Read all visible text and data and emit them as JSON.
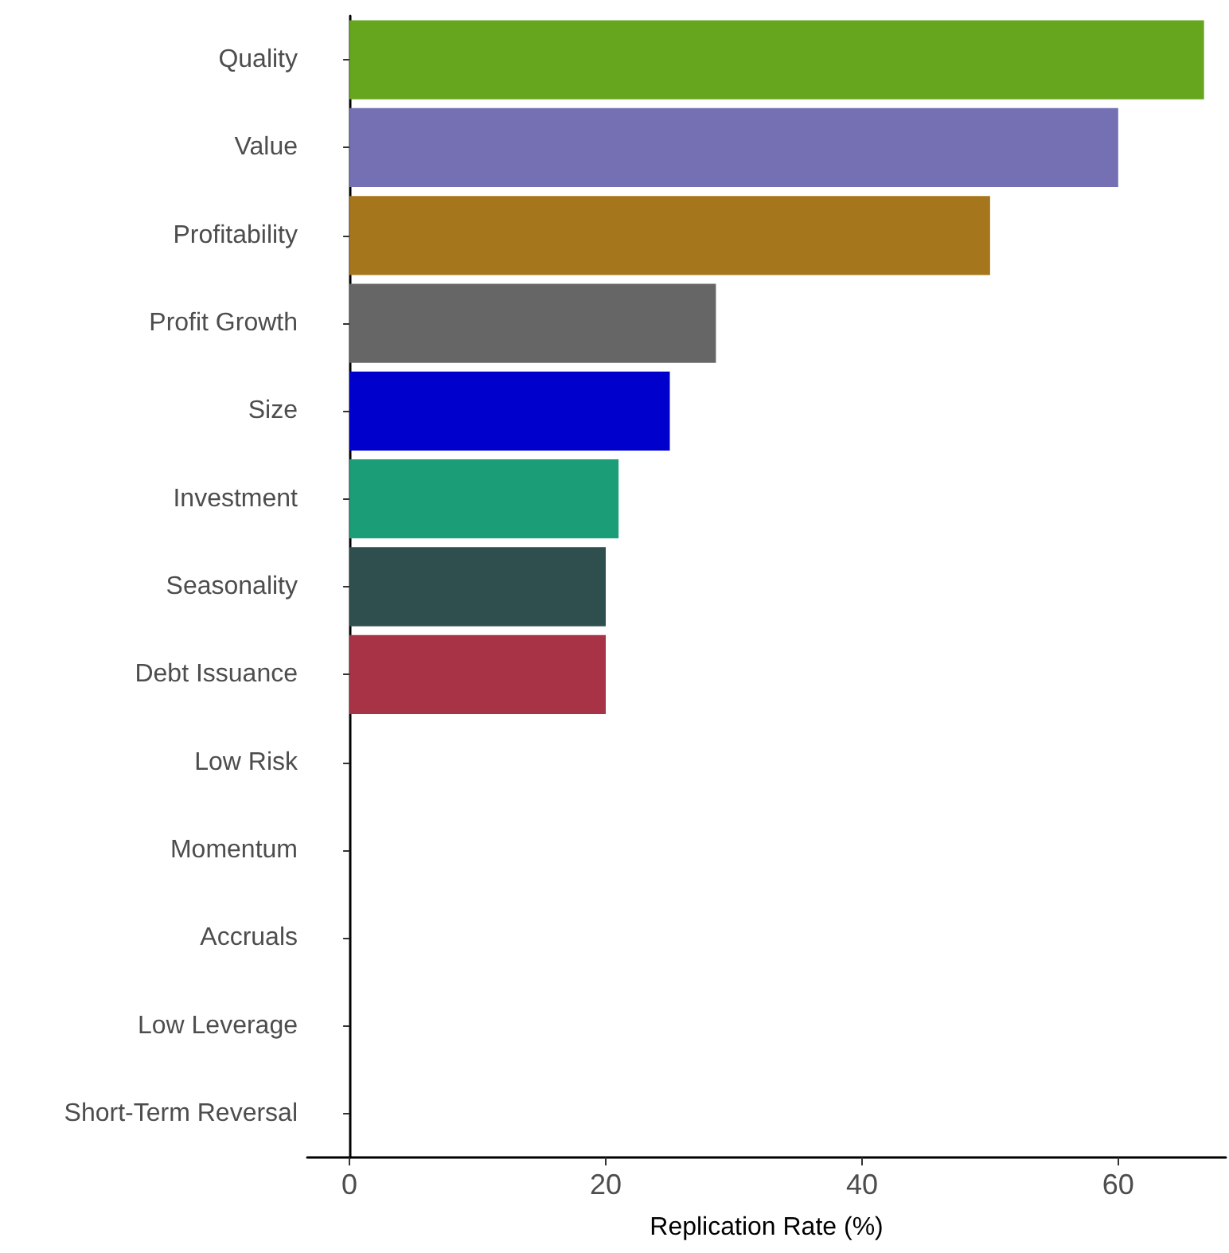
{
  "chart_data": {
    "type": "bar",
    "orientation": "horizontal",
    "xlabel": "Replication Rate (%)",
    "categories": [
      "Quality",
      "Value",
      "Profitability",
      "Profit Growth",
      "Size",
      "Investment",
      "Seasonality",
      "Debt Issuance",
      "Low Risk",
      "Momentum",
      "Accruals",
      "Low Leverage",
      "Short-Term Reversal"
    ],
    "values": [
      66.7,
      60,
      50,
      28.6,
      25,
      21,
      20,
      20,
      0,
      0,
      0,
      0,
      0
    ],
    "colors": [
      "#66a61e",
      "#7570b3",
      "#a6761d",
      "#666666",
      "#0000cd",
      "#1b9e77",
      "#2f4f4f",
      "#a83246",
      "#e7298a",
      "#d95f02",
      "#e6ab02",
      "#377eb8",
      "#999999"
    ],
    "xlim": [
      -3.3,
      68.4
    ],
    "xticks": [
      0,
      20,
      40,
      60
    ]
  }
}
